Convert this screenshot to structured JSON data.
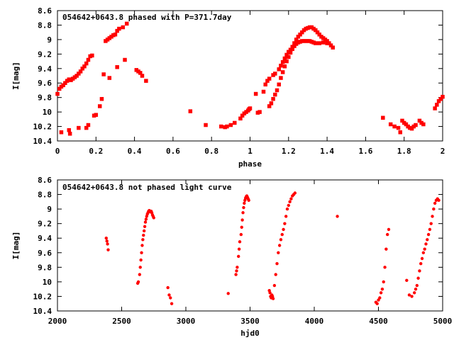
{
  "chart_data": [
    {
      "type": "scatter",
      "title": "054642+0643.8 phased with P=371.7day",
      "xlabel": "phase",
      "ylabel": "I[mag]",
      "xlim": [
        0,
        2
      ],
      "ylim": [
        10.4,
        8.6
      ],
      "y_inverted": true,
      "xticks": [
        "0",
        "0.2",
        "0.4",
        "0.6",
        "0.8",
        "1",
        "1.2",
        "1.4",
        "1.6",
        "1.8",
        "2"
      ],
      "yticks": [
        "8.6",
        "8.8",
        "9",
        "9.2",
        "9.4",
        "9.6",
        "9.8",
        "10",
        "10.2",
        "10.4"
      ],
      "grid": false,
      "marker_color": "#ff0000",
      "marker": "square-large",
      "series": [
        {
          "x": [
            0.0,
            0.01,
            0.02,
            0.03,
            0.04,
            0.05,
            0.06,
            0.07,
            0.08,
            0.09,
            0.1,
            0.11,
            0.12,
            0.13,
            0.14,
            0.15,
            0.16,
            0.17,
            0.18,
            0.02,
            0.06,
            0.065,
            0.11,
            0.15,
            0.16,
            0.19,
            0.2,
            0.22,
            0.23,
            0.24,
            0.25,
            0.26,
            0.27,
            0.28,
            0.29,
            0.3,
            0.31,
            0.32,
            0.34,
            0.36,
            0.27,
            0.31,
            0.35,
            0.41,
            0.42,
            0.43,
            0.44,
            0.46,
            0.69,
            0.77,
            0.85,
            0.87,
            0.88,
            0.9,
            0.92,
            0.95,
            0.96,
            0.97,
            0.98,
            0.99,
            0.995,
            1.0,
            1.03,
            1.04,
            1.05,
            1.07,
            1.08,
            1.09,
            1.1,
            1.12,
            1.13,
            1.15,
            1.16,
            1.17,
            1.18,
            1.19,
            1.2,
            1.21,
            1.22,
            1.23,
            1.24,
            1.25,
            1.26,
            1.27,
            1.28,
            1.29,
            1.3,
            1.31,
            1.32,
            1.33,
            1.34,
            1.35,
            1.36,
            1.37,
            1.38,
            1.39,
            1.4,
            1.41,
            1.42,
            1.43,
            1.1,
            1.11,
            1.12,
            1.13,
            1.14,
            1.15,
            1.16,
            1.17,
            1.18,
            1.19,
            1.2,
            1.21,
            1.22,
            1.23,
            1.24,
            1.25,
            1.26,
            1.27,
            1.28,
            1.29,
            1.3,
            1.31,
            1.32,
            1.33,
            1.34,
            1.36,
            1.38,
            1.4,
            1.69,
            1.73,
            1.75,
            1.77,
            1.78,
            1.79,
            1.8,
            1.81,
            1.82,
            1.83,
            1.84,
            1.85,
            1.86,
            1.88,
            1.89,
            1.9,
            1.96,
            1.97,
            1.98,
            1.99,
            2.0
          ],
          "y": [
            9.75,
            9.68,
            9.65,
            9.63,
            9.6,
            9.57,
            9.55,
            9.56,
            9.54,
            9.52,
            9.5,
            9.47,
            9.44,
            9.4,
            9.37,
            9.33,
            9.28,
            9.23,
            9.22,
            10.28,
            10.25,
            10.3,
            10.22,
            10.22,
            10.18,
            10.05,
            10.04,
            9.92,
            9.82,
            9.48,
            9.02,
            9.0,
            8.98,
            8.96,
            8.94,
            8.93,
            8.88,
            8.85,
            8.83,
            8.78,
            9.53,
            9.38,
            9.28,
            9.42,
            9.44,
            9.46,
            9.5,
            9.57,
            9.99,
            10.18,
            10.2,
            10.21,
            10.2,
            10.18,
            10.15,
            10.09,
            10.05,
            10.02,
            10.0,
            9.98,
            9.96,
            9.95,
            9.75,
            10.01,
            10.0,
            9.72,
            9.62,
            9.57,
            9.54,
            9.49,
            9.47,
            9.41,
            9.36,
            9.31,
            9.26,
            9.21,
            9.17,
            9.14,
            9.1,
            9.05,
            9.0,
            8.96,
            8.93,
            8.9,
            8.87,
            8.85,
            8.84,
            8.83,
            8.83,
            8.85,
            8.87,
            8.9,
            8.93,
            8.96,
            8.98,
            9.0,
            9.02,
            9.05,
            9.08,
            9.11,
            9.92,
            9.88,
            9.82,
            9.76,
            9.7,
            9.62,
            9.53,
            9.45,
            9.37,
            9.3,
            9.24,
            9.18,
            9.13,
            9.09,
            9.06,
            9.04,
            9.03,
            9.02,
            9.02,
            9.02,
            9.02,
            9.02,
            9.03,
            9.04,
            9.05,
            9.05,
            9.04,
            9.05,
            10.08,
            10.17,
            10.2,
            10.22,
            10.28,
            10.12,
            10.15,
            10.17,
            10.2,
            10.22,
            10.23,
            10.2,
            10.18,
            10.12,
            10.15,
            10.17,
            9.95,
            9.9,
            9.85,
            9.82,
            9.79
          ]
        }
      ]
    },
    {
      "type": "scatter",
      "title": "054642+0643.8 not phased light curve",
      "xlabel": "hjd0",
      "ylabel": "I[mag]",
      "xlim": [
        2000,
        5000
      ],
      "ylim": [
        10.4,
        8.6
      ],
      "y_inverted": true,
      "xticks": [
        "2000",
        "2500",
        "3000",
        "3500",
        "4000",
        "4500",
        "5000"
      ],
      "yticks": [
        "8.6",
        "8.8",
        "9",
        "9.2",
        "9.4",
        "9.6",
        "9.8",
        "10",
        "10.2",
        "10.4"
      ],
      "grid": false,
      "marker_color": "#ff0000",
      "marker": "dot",
      "series": [
        {
          "x": [
            2380,
            2385,
            2390,
            2395,
            2625,
            2630,
            2640,
            2645,
            2650,
            2655,
            2660,
            2665,
            2670,
            2675,
            2680,
            2685,
            2690,
            2695,
            2700,
            2705,
            2710,
            2715,
            2720,
            2725,
            2730,
            2735,
            2740,
            2745,
            2750,
            2860,
            2870,
            2880,
            2890,
            3330,
            3390,
            3395,
            3400,
            3410,
            3415,
            3420,
            3430,
            3435,
            3440,
            3445,
            3450,
            3455,
            3460,
            3465,
            3470,
            3475,
            3480,
            3485,
            3490,
            3650,
            3655,
            3660,
            3665,
            3670,
            3675,
            3680,
            3690,
            3700,
            3710,
            3720,
            3730,
            3740,
            3750,
            3760,
            3770,
            3780,
            3790,
            3800,
            3810,
            3820,
            3830,
            3840,
            3850,
            4180,
            4480,
            4490,
            4500,
            4510,
            4520,
            4530,
            4540,
            4550,
            4560,
            4570,
            4580,
            4720,
            4740,
            4760,
            4780,
            4790,
            4800,
            4810,
            4820,
            4830,
            4840,
            4850,
            4860,
            4870,
            4880,
            4890,
            4900,
            4910,
            4920,
            4930,
            4940,
            4950,
            4960,
            4970
          ],
          "y": [
            9.4,
            9.44,
            9.48,
            9.56,
            10.02,
            10.0,
            9.9,
            9.8,
            9.7,
            9.6,
            9.5,
            9.42,
            9.36,
            9.3,
            9.24,
            9.18,
            9.14,
            9.1,
            9.07,
            9.05,
            9.03,
            9.02,
            9.03,
            9.04,
            9.03,
            9.05,
            9.08,
            9.1,
            9.12,
            10.08,
            10.18,
            10.22,
            10.3,
            10.16,
            9.9,
            9.85,
            9.8,
            9.65,
            9.55,
            9.45,
            9.35,
            9.25,
            9.15,
            9.05,
            8.98,
            8.92,
            8.88,
            8.85,
            8.83,
            8.82,
            8.84,
            8.86,
            8.88,
            10.12,
            10.15,
            10.2,
            10.22,
            10.18,
            10.2,
            10.23,
            10.05,
            9.9,
            9.75,
            9.6,
            9.5,
            9.42,
            9.35,
            9.28,
            9.2,
            9.1,
            9.0,
            8.95,
            8.9,
            8.86,
            8.82,
            8.8,
            8.78,
            9.1,
            10.28,
            10.3,
            10.25,
            10.22,
            10.15,
            10.1,
            10.0,
            9.8,
            9.55,
            9.35,
            9.28,
            9.98,
            10.18,
            10.2,
            10.15,
            10.1,
            10.05,
            9.95,
            9.85,
            9.75,
            9.68,
            9.6,
            9.55,
            9.48,
            9.42,
            9.35,
            9.28,
            9.2,
            9.1,
            9.0,
            8.92,
            8.88,
            8.86,
            8.88
          ],
          "note": ""
        }
      ]
    }
  ]
}
